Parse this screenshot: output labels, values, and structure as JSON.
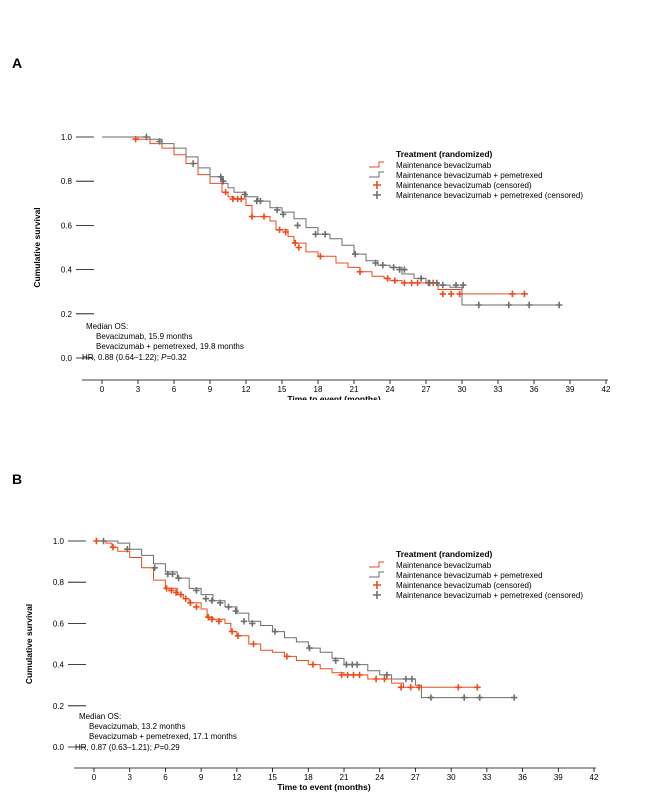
{
  "panel_labels": [
    "A",
    "B"
  ],
  "colors": {
    "bev": "#f04a1c",
    "pem": "#6e6e6e"
  },
  "chart_data": [
    {
      "type": "line",
      "xlabel": "Time to event (months)",
      "ylabel": "Cumulative survival",
      "xticks": [
        "0",
        "3",
        "6",
        "9",
        "12",
        "15",
        "18",
        "21",
        "24",
        "27",
        "30",
        "33",
        "36",
        "39",
        "42"
      ],
      "yticks": [
        "0.0",
        "0.2",
        "0.4",
        "0.6",
        "0.8",
        "1.0"
      ],
      "xlim": [
        0,
        42
      ],
      "ylim": [
        0,
        1
      ],
      "legend": {
        "title": "Treatment (randomized)",
        "entries": [
          "Maintenance bevacizumab",
          "Maintenance bevacizumab + pemetrexed",
          "Maintenance bevacizumab (censored)",
          "Maintenance bevacizumab + pemetrexed (censored)"
        ]
      },
      "annotation": {
        "title": "Median OS:",
        "line1": "Bevacizumab, 15.9 months",
        "line2": "Bevacizumab + pemetrexed, 19.8 months",
        "hr_prefix": "HR, 0.88 (0.64–1.22); ",
        "p_letter": "P",
        "p_suffix": "=0.32"
      },
      "series": [
        {
          "name": "Maintenance bevacizumab",
          "steps": [
            [
              0,
              1.0
            ],
            [
              3,
              0.99
            ],
            [
              4,
              0.97
            ],
            [
              5,
              0.95
            ],
            [
              6,
              0.92
            ],
            [
              7,
              0.88
            ],
            [
              8,
              0.83
            ],
            [
              9,
              0.79
            ],
            [
              10,
              0.75
            ],
            [
              10.5,
              0.73
            ],
            [
              11,
              0.72
            ],
            [
              12,
              0.69
            ],
            [
              12.5,
              0.64
            ],
            [
              14,
              0.62
            ],
            [
              14.5,
              0.58
            ],
            [
              15.5,
              0.55
            ],
            [
              16,
              0.52
            ],
            [
              17,
              0.48
            ],
            [
              18,
              0.46
            ],
            [
              19.5,
              0.43
            ],
            [
              20.5,
              0.41
            ],
            [
              21.5,
              0.39
            ],
            [
              22.5,
              0.37
            ],
            [
              23.5,
              0.36
            ],
            [
              24,
              0.35
            ],
            [
              25,
              0.34
            ],
            [
              28,
              0.31
            ],
            [
              30,
              0.29
            ],
            [
              35,
              0.29
            ],
            [
              35.5,
              0.29
            ]
          ],
          "censored": [
            [
              2.8,
              0.99
            ],
            [
              10.3,
              0.75
            ],
            [
              10.9,
              0.72
            ],
            [
              11.3,
              0.72
            ],
            [
              11.6,
              0.72
            ],
            [
              12.5,
              0.64
            ],
            [
              13.5,
              0.64
            ],
            [
              14.8,
              0.58
            ],
            [
              15.3,
              0.57
            ],
            [
              16.1,
              0.52
            ],
            [
              16.4,
              0.5
            ],
            [
              18.2,
              0.46
            ],
            [
              21.5,
              0.39
            ],
            [
              23.8,
              0.36
            ],
            [
              24.4,
              0.35
            ],
            [
              25.2,
              0.34
            ],
            [
              25.8,
              0.34
            ],
            [
              26.3,
              0.34
            ],
            [
              27.2,
              0.34
            ],
            [
              27.6,
              0.34
            ],
            [
              28.4,
              0.29
            ],
            [
              29.1,
              0.29
            ],
            [
              29.8,
              0.29
            ],
            [
              34.2,
              0.29
            ],
            [
              35.2,
              0.29
            ]
          ]
        },
        {
          "name": "Maintenance bevacizumab + pemetrexed",
          "steps": [
            [
              0,
              1.0
            ],
            [
              4,
              0.99
            ],
            [
              5,
              0.97
            ],
            [
              6,
              0.95
            ],
            [
              7,
              0.91
            ],
            [
              8,
              0.86
            ],
            [
              9,
              0.82
            ],
            [
              10,
              0.79
            ],
            [
              10.5,
              0.77
            ],
            [
              11,
              0.75
            ],
            [
              12,
              0.73
            ],
            [
              13,
              0.71
            ],
            [
              14,
              0.68
            ],
            [
              15,
              0.66
            ],
            [
              16,
              0.63
            ],
            [
              17,
              0.59
            ],
            [
              18,
              0.56
            ],
            [
              19,
              0.54
            ],
            [
              20,
              0.51
            ],
            [
              21,
              0.47
            ],
            [
              22,
              0.44
            ],
            [
              23,
              0.42
            ],
            [
              24,
              0.41
            ],
            [
              25,
              0.38
            ],
            [
              26,
              0.36
            ],
            [
              27,
              0.34
            ],
            [
              28,
              0.33
            ],
            [
              29,
              0.32
            ],
            [
              30,
              0.24
            ],
            [
              38,
              0.24
            ]
          ],
          "censored": [
            [
              3.7,
              1.0
            ],
            [
              4.8,
              0.98
            ],
            [
              7.6,
              0.88
            ],
            [
              9.9,
              0.82
            ],
            [
              10.1,
              0.8
            ],
            [
              11.9,
              0.74
            ],
            [
              12.9,
              0.71
            ],
            [
              13.2,
              0.71
            ],
            [
              14.6,
              0.67
            ],
            [
              15.1,
              0.65
            ],
            [
              16.3,
              0.6
            ],
            [
              17.8,
              0.56
            ],
            [
              18.6,
              0.56
            ],
            [
              21.1,
              0.47
            ],
            [
              22.8,
              0.43
            ],
            [
              23.4,
              0.42
            ],
            [
              24.3,
              0.41
            ],
            [
              24.8,
              0.4
            ],
            [
              25.2,
              0.4
            ],
            [
              26.6,
              0.36
            ],
            [
              27.3,
              0.34
            ],
            [
              27.9,
              0.34
            ],
            [
              28.4,
              0.33
            ],
            [
              29.5,
              0.33
            ],
            [
              30.1,
              0.33
            ],
            [
              31.4,
              0.24
            ],
            [
              33.9,
              0.24
            ],
            [
              35.6,
              0.24
            ],
            [
              38.1,
              0.24
            ]
          ]
        }
      ]
    },
    {
      "type": "line",
      "xlabel": "Time to event (months)",
      "ylabel": "Cumulative survival",
      "xticks": [
        "0",
        "3",
        "6",
        "9",
        "12",
        "15",
        "18",
        "21",
        "24",
        "27",
        "30",
        "33",
        "36",
        "39",
        "42"
      ],
      "yticks": [
        "0.0",
        "0.2",
        "0.4",
        "0.6",
        "0.8",
        "1.0"
      ],
      "xlim": [
        0,
        42
      ],
      "ylim": [
        0,
        1
      ],
      "legend": {
        "title": "Treatment (randomized)",
        "entries": [
          "Maintenance bevacizumab",
          "Maintenance bevacizumab + pemetrexed",
          "Maintenance bevacizumab (censored)",
          "Maintenance bevacizumab + pemetrexed (censored)"
        ]
      },
      "annotation": {
        "title": "Median OS:",
        "line1": "Bevacizumab, 13.2 months",
        "line2": "Bevacizumab + pemetrexed, 17.1 months",
        "hr_prefix": "HR, 0.87 (0.63–1.21); ",
        "p_letter": "P",
        "p_suffix": "=0.29"
      },
      "series": [
        {
          "name": "Maintenance bevacizumab",
          "steps": [
            [
              0,
              1.0
            ],
            [
              1,
              0.99
            ],
            [
              1.5,
              0.97
            ],
            [
              2,
              0.95
            ],
            [
              3,
              0.92
            ],
            [
              4,
              0.87
            ],
            [
              5,
              0.81
            ],
            [
              6,
              0.77
            ],
            [
              7,
              0.74
            ],
            [
              7.5,
              0.72
            ],
            [
              8,
              0.7
            ],
            [
              9,
              0.67
            ],
            [
              9.5,
              0.63
            ],
            [
              10,
              0.62
            ],
            [
              11,
              0.6
            ],
            [
              11.5,
              0.56
            ],
            [
              12,
              0.54
            ],
            [
              13,
              0.5
            ],
            [
              14,
              0.47
            ],
            [
              15,
              0.46
            ],
            [
              16,
              0.44
            ],
            [
              17,
              0.42
            ],
            [
              18,
              0.4
            ],
            [
              19,
              0.38
            ],
            [
              20,
              0.36
            ],
            [
              21,
              0.35
            ],
            [
              23,
              0.33
            ],
            [
              25,
              0.31
            ],
            [
              26,
              0.29
            ],
            [
              28,
              0.29
            ],
            [
              32.5,
              0.29
            ]
          ],
          "censored": [
            [
              0.2,
              1.0
            ],
            [
              1.6,
              0.97
            ],
            [
              6.1,
              0.77
            ],
            [
              6.5,
              0.76
            ],
            [
              6.9,
              0.75
            ],
            [
              7.3,
              0.74
            ],
            [
              7.7,
              0.72
            ],
            [
              8.1,
              0.7
            ],
            [
              8.6,
              0.68
            ],
            [
              9.6,
              0.63
            ],
            [
              9.9,
              0.62
            ],
            [
              10.5,
              0.61
            ],
            [
              11.6,
              0.56
            ],
            [
              12.1,
              0.54
            ],
            [
              13.4,
              0.5
            ],
            [
              16.2,
              0.44
            ],
            [
              18.4,
              0.4
            ],
            [
              20.8,
              0.35
            ],
            [
              21.3,
              0.35
            ],
            [
              21.8,
              0.35
            ],
            [
              22.3,
              0.35
            ],
            [
              23.7,
              0.33
            ],
            [
              24.4,
              0.33
            ],
            [
              25.8,
              0.29
            ],
            [
              26.6,
              0.29
            ],
            [
              27.3,
              0.29
            ],
            [
              30.6,
              0.29
            ],
            [
              32.2,
              0.29
            ]
          ]
        },
        {
          "name": "Maintenance bevacizumab + pemetrexed",
          "steps": [
            [
              0,
              1.0
            ],
            [
              2,
              0.99
            ],
            [
              3,
              0.96
            ],
            [
              4,
              0.93
            ],
            [
              5,
              0.89
            ],
            [
              6,
              0.85
            ],
            [
              7,
              0.82
            ],
            [
              8,
              0.77
            ],
            [
              9,
              0.74
            ],
            [
              10,
              0.71
            ],
            [
              11,
              0.68
            ],
            [
              12,
              0.65
            ],
            [
              13,
              0.61
            ],
            [
              14,
              0.59
            ],
            [
              15,
              0.56
            ],
            [
              16,
              0.53
            ],
            [
              17,
              0.51
            ],
            [
              18,
              0.48
            ],
            [
              19,
              0.46
            ],
            [
              20,
              0.43
            ],
            [
              21,
              0.4
            ],
            [
              23,
              0.37
            ],
            [
              24,
              0.35
            ],
            [
              25,
              0.33
            ],
            [
              27,
              0.3
            ],
            [
              27.5,
              0.24
            ],
            [
              35.5,
              0.24
            ]
          ],
          "censored": [
            [
              0.8,
              1.0
            ],
            [
              2.8,
              0.96
            ],
            [
              5.1,
              0.87
            ],
            [
              6.2,
              0.84
            ],
            [
              6.6,
              0.84
            ],
            [
              7.1,
              0.82
            ],
            [
              8.6,
              0.76
            ],
            [
              9.4,
              0.72
            ],
            [
              9.9,
              0.71
            ],
            [
              10.6,
              0.7
            ],
            [
              11.3,
              0.68
            ],
            [
              11.9,
              0.66
            ],
            [
              12.6,
              0.61
            ],
            [
              13.3,
              0.6
            ],
            [
              15.2,
              0.56
            ],
            [
              18.1,
              0.48
            ],
            [
              20.3,
              0.42
            ],
            [
              21.2,
              0.4
            ],
            [
              21.7,
              0.4
            ],
            [
              22.1,
              0.4
            ],
            [
              24.6,
              0.35
            ],
            [
              26.2,
              0.33
            ],
            [
              26.7,
              0.33
            ],
            [
              28.3,
              0.24
            ],
            [
              31.1,
              0.24
            ],
            [
              32.4,
              0.24
            ],
            [
              35.3,
              0.24
            ]
          ]
        }
      ]
    }
  ]
}
